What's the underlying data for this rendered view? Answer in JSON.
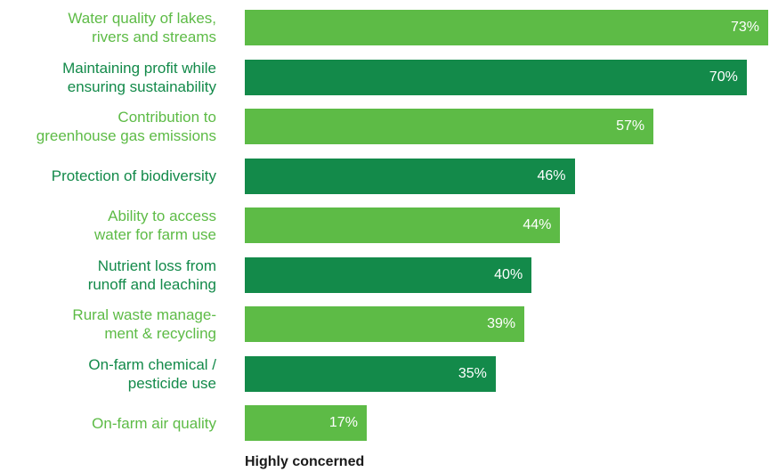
{
  "chart_data": {
    "type": "bar",
    "orientation": "horizontal",
    "categories": [
      "Water quality of lakes,\nrivers and streams",
      "Maintaining profit while\nensuring sustainability",
      "Contribution to\ngreenhouse gas emissions",
      "Protection of biodiversity",
      "Ability to access\nwater for farm use",
      "Nutrient loss from\nrunoff and leaching",
      "Rural waste manage-\nment & recycling",
      "On-farm chemical /\npesticide use",
      "On-farm air quality"
    ],
    "values": [
      73,
      70,
      57,
      46,
      44,
      40,
      39,
      35,
      17
    ],
    "value_labels": [
      "73%",
      "70%",
      "57%",
      "46%",
      "44%",
      "40%",
      "39%",
      "35%",
      "17%"
    ],
    "xlabel": "Highly concerned",
    "xlim": [
      0,
      75
    ],
    "colors": {
      "light": "#5dbb46",
      "dark": "#138a4a"
    },
    "grid": false
  }
}
